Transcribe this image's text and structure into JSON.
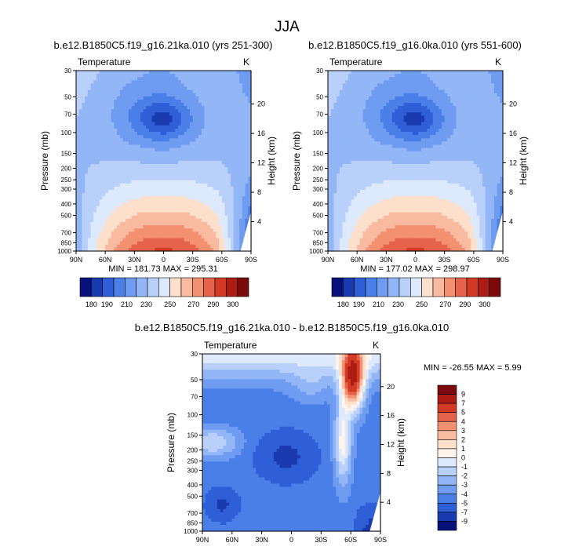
{
  "title": "JJA",
  "chart_data": [
    {
      "type": "heatmap",
      "kind": "contour",
      "title": "b.e12.B1850C5.f19_g16.21ka.010 (yrs 251-300)",
      "variable": "Temperature",
      "units": "K",
      "ylabel": "Pressure (mb)",
      "ylabel_right": "Height (km)",
      "x_ticks": [
        "90N",
        "60N",
        "30N",
        "0",
        "30S",
        "60S",
        "90S"
      ],
      "pressure_ticks": [
        30,
        50,
        70,
        100,
        150,
        200,
        250,
        300,
        400,
        500,
        700,
        850,
        1000
      ],
      "height_ticks": [
        4,
        8,
        12,
        16,
        20
      ],
      "min_label": "MIN = 181.73",
      "max_label": "MAX = 295.31",
      "min": 181.73,
      "max": 295.31,
      "colorbar_levels": [
        180,
        190,
        200,
        210,
        220,
        230,
        240,
        250,
        260,
        270,
        280,
        290,
        300
      ],
      "colorbar_labels": [
        "180",
        "190",
        "210",
        "230",
        "250",
        "270",
        "290",
        "300"
      ],
      "colors": [
        "#08107a",
        "#1a3ab0",
        "#2f5fd6",
        "#4a7fe8",
        "#6f9cf0",
        "#93b7f6",
        "#b8d0fa",
        "#dde9fd",
        "#fde0cc",
        "#f9baa0",
        "#f29070",
        "#e5634a",
        "#d23a26",
        "#ad1c14",
        "#7a0a0a"
      ]
    },
    {
      "type": "heatmap",
      "kind": "contour",
      "title": "b.e12.B1850C5.f19_g16.0ka.010 (yrs 551-600)",
      "variable": "Temperature",
      "units": "K",
      "ylabel": "Pressure (mb)",
      "ylabel_right": "Height (km)",
      "x_ticks": [
        "90N",
        "60N",
        "30N",
        "0",
        "30S",
        "60S",
        "90S"
      ],
      "pressure_ticks": [
        30,
        50,
        70,
        100,
        150,
        200,
        250,
        300,
        400,
        500,
        700,
        850,
        1000
      ],
      "height_ticks": [
        4,
        8,
        12,
        16,
        20
      ],
      "min_label": "MIN = 177.02",
      "max_label": "MAX = 298.97",
      "min": 177.02,
      "max": 298.97,
      "colorbar_levels": [
        180,
        190,
        200,
        210,
        220,
        230,
        240,
        250,
        260,
        270,
        280,
        290,
        300
      ],
      "colorbar_labels": [
        "180",
        "190",
        "210",
        "230",
        "250",
        "270",
        "290",
        "300"
      ],
      "colors": [
        "#08107a",
        "#1a3ab0",
        "#2f5fd6",
        "#4a7fe8",
        "#6f9cf0",
        "#93b7f6",
        "#b8d0fa",
        "#dde9fd",
        "#fde0cc",
        "#f9baa0",
        "#f29070",
        "#e5634a",
        "#d23a26",
        "#ad1c14",
        "#7a0a0a"
      ]
    },
    {
      "type": "heatmap",
      "kind": "contour",
      "title": "b.e12.B1850C5.f19_g16.21ka.010 - b.e12.B1850C5.f19_g16.0ka.010",
      "variable": "Temperature",
      "units": "K",
      "ylabel": "Pressure (mb)",
      "ylabel_right": "Height (km)",
      "x_ticks": [
        "90N",
        "60N",
        "30N",
        "0",
        "30S",
        "60S",
        "90S"
      ],
      "pressure_ticks": [
        30,
        50,
        70,
        100,
        150,
        200,
        250,
        300,
        400,
        500,
        700,
        850,
        1000
      ],
      "height_ticks": [
        4,
        8,
        12,
        16,
        20
      ],
      "min_label": "MIN = -26.55",
      "max_label": "MAX =   5.99",
      "min": -26.55,
      "max": 5.99,
      "colorbar_labels": [
        "9",
        "7",
        "5",
        "4",
        "3",
        "2",
        "1",
        "0",
        "-1",
        "-2",
        "-3",
        "-4",
        "-5",
        "-7",
        "-9"
      ],
      "colors": [
        "#7a0a0a",
        "#ad1c14",
        "#d23a26",
        "#e5634a",
        "#f29070",
        "#f9baa0",
        "#fde0cc",
        "#fff4ec",
        "#dde9fd",
        "#b8d0fa",
        "#93b7f6",
        "#6f9cf0",
        "#4a7fe8",
        "#2f5fd6",
        "#1a3ab0",
        "#08107a"
      ]
    }
  ]
}
